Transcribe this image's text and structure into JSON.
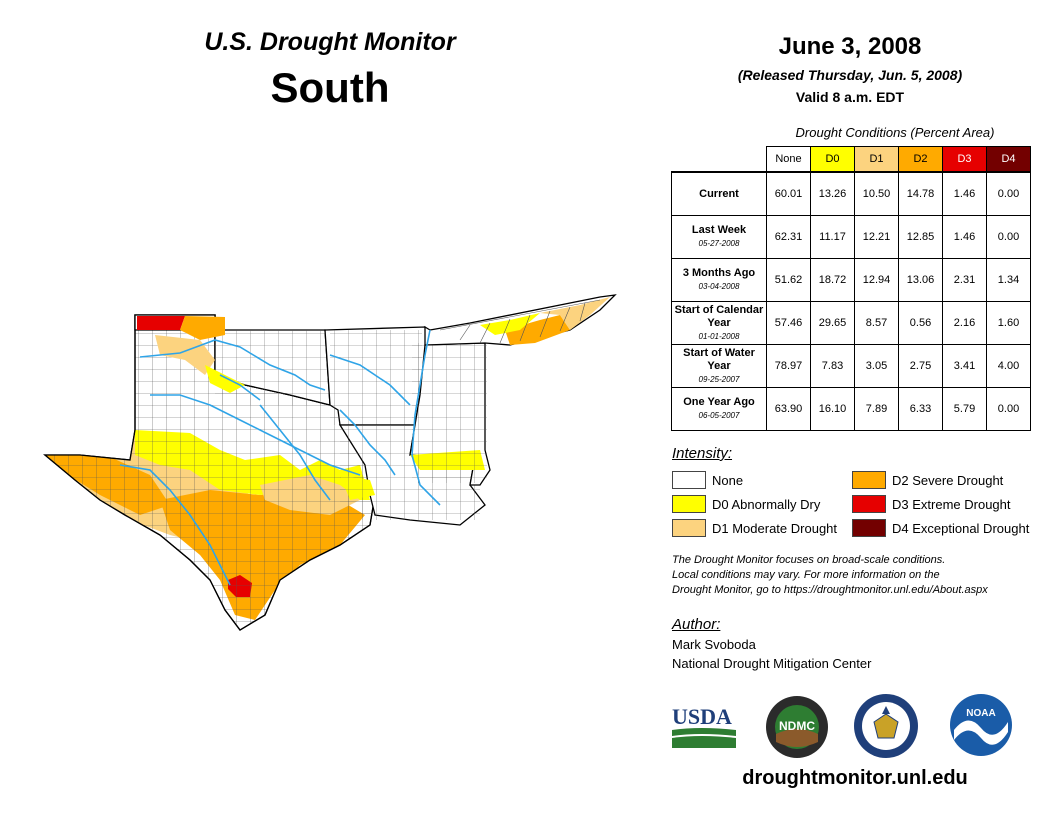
{
  "header": {
    "title": "U.S. Drought Monitor",
    "region": "South",
    "date": "June 3, 2008",
    "released": "(Released Thursday, Jun. 5, 2008)",
    "valid": "Valid 8 a.m. EDT"
  },
  "table": {
    "caption": "Drought Conditions (Percent Area)",
    "columns": [
      "None",
      "D0",
      "D1",
      "D2",
      "D3",
      "D4"
    ],
    "column_colors": [
      "#ffffff",
      "#ffff00",
      "#fcd37f",
      "#ffaa00",
      "#e60000",
      "#730000"
    ],
    "rows": [
      {
        "label": "Current",
        "date": "",
        "values": [
          "60.01",
          "13.26",
          "10.50",
          "14.78",
          "1.46",
          "0.00"
        ]
      },
      {
        "label": "Last Week",
        "date": "05-27-2008",
        "values": [
          "62.31",
          "11.17",
          "12.21",
          "12.85",
          "1.46",
          "0.00"
        ]
      },
      {
        "label": "3 Months Ago",
        "date": "03-04-2008",
        "values": [
          "51.62",
          "18.72",
          "12.94",
          "13.06",
          "2.31",
          "1.34"
        ]
      },
      {
        "label": "Start of Calendar Year",
        "date": "01-01-2008",
        "values": [
          "57.46",
          "29.65",
          "8.57",
          "0.56",
          "2.16",
          "1.60"
        ]
      },
      {
        "label": "Start of Water Year",
        "date": "09-25-2007",
        "values": [
          "78.97",
          "7.83",
          "3.05",
          "2.75",
          "3.41",
          "4.00"
        ]
      },
      {
        "label": "One Year Ago",
        "date": "06-05-2007",
        "values": [
          "63.90",
          "16.10",
          "7.89",
          "6.33",
          "5.79",
          "0.00"
        ]
      }
    ]
  },
  "legend": {
    "title": "Intensity:",
    "items": [
      {
        "label": "None",
        "color": "#ffffff"
      },
      {
        "label": "D0 Abnormally Dry",
        "color": "#ffff00"
      },
      {
        "label": "D1 Moderate Drought",
        "color": "#fcd37f"
      },
      {
        "label": "D2 Severe Drought",
        "color": "#ffaa00"
      },
      {
        "label": "D3 Extreme Drought",
        "color": "#e60000"
      },
      {
        "label": "D4 Exceptional Drought",
        "color": "#730000"
      }
    ]
  },
  "note": {
    "line1": "The Drought Monitor focuses on broad-scale conditions.",
    "line2": "Local conditions may vary. For more information on the",
    "line3": "Drought Monitor, go to https://droughtmonitor.unl.edu/About.aspx"
  },
  "author": {
    "title": "Author:",
    "name": "Mark Svoboda",
    "org": "National Drought Mitigation Center"
  },
  "logos": {
    "usda": "USDA",
    "ndmc": "NDMC",
    "noaa": "NOAA"
  },
  "url": "droughtmonitor.unl.edu",
  "colors": {
    "river": "#2fa4e7",
    "border": "#000000",
    "county": "#555555"
  }
}
